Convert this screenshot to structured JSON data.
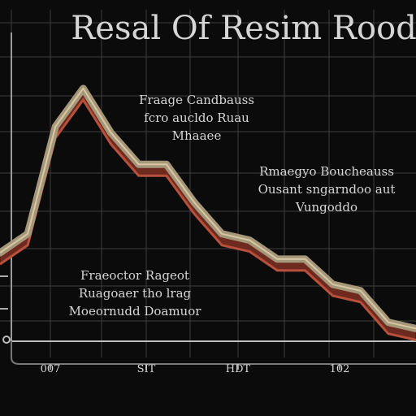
{
  "chart_data": {
    "type": "line",
    "title": "Resal Of Resim Rood",
    "annotations": [
      {
        "lines": [
          "Fraage Candbauss",
          "fcro aucldo Ruau",
          "Mhaaee"
        ]
      },
      {
        "lines": [
          "Rmaegyo Boucheauss",
          "Ousant sngarndoo aut",
          "Vungoddo"
        ]
      },
      {
        "lines": [
          "Fraeoctor Rageot",
          "Ruagoaer tho lrag",
          "Moeornudd Doamuor"
        ]
      }
    ],
    "x_tick_labels": [
      "007",
      "SIT",
      "HDT",
      "102"
    ],
    "y_tick_labels": [
      "",
      ""
    ],
    "series": [
      {
        "x": [
          0,
          1,
          2,
          3,
          4,
          5,
          6,
          7,
          8,
          9,
          10,
          11,
          12,
          13,
          14,
          15
        ],
        "values": [
          14,
          17,
          34,
          40,
          33,
          28,
          28,
          22,
          17,
          16,
          13,
          13,
          9,
          8,
          3,
          2
        ]
      }
    ],
    "xlim": [
      0,
      15
    ],
    "ylim": [
      0,
      45
    ],
    "grid": true,
    "colors": {
      "background": "#0b0b0b",
      "grid": "#3c3c3c",
      "line_top": "#a5977a",
      "line_face": "#6e2a1e",
      "line_edge": "#d8c7a4",
      "text": "#d6d6d6"
    }
  }
}
